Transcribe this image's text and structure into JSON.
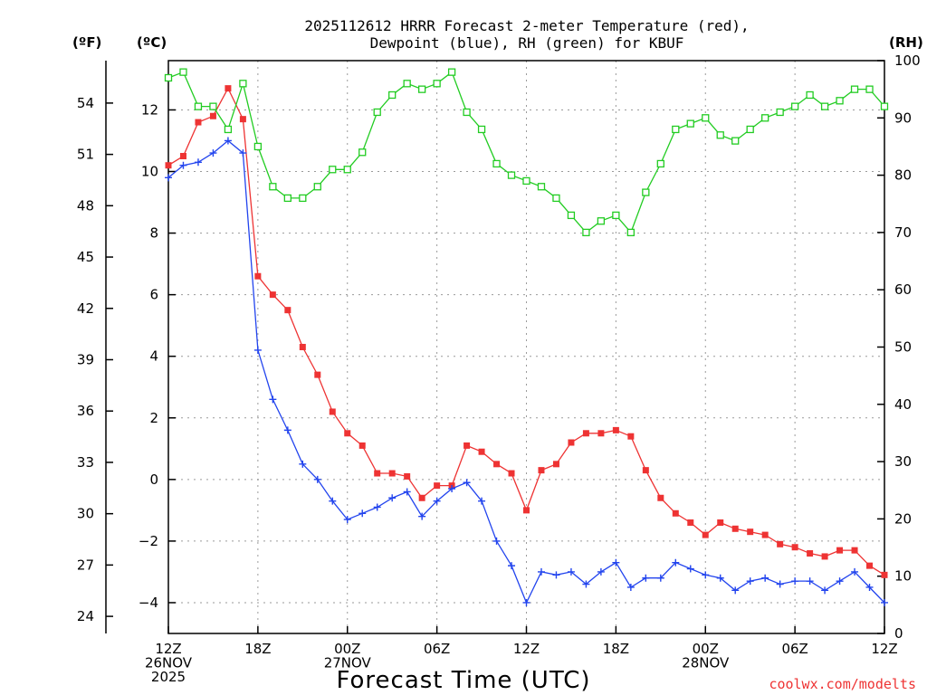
{
  "chart_data": {
    "type": "line",
    "title_lines": [
      "2025112612 HRRR Forecast 2-meter Temperature (red),",
      "Dewpoint (blue), RH (green) for KBUF"
    ],
    "unit_labels": {
      "fahrenheit": "(ºF)",
      "celsius": "(ºC)",
      "rh": "(RH)"
    },
    "xlabel": "Forecast Time (UTC)",
    "credit": "coolwx.com/modelts",
    "x_range_hours": [
      0,
      48
    ],
    "celsius_axis": {
      "min": -5,
      "max": 13.6,
      "ticks": [
        -4,
        -2,
        0,
        2,
        4,
        6,
        8,
        10,
        12
      ]
    },
    "fahrenheit_ticks": [
      24,
      27,
      30,
      33,
      36,
      39,
      42,
      45,
      48,
      51,
      54
    ],
    "rh_axis": {
      "min": 0,
      "max": 100,
      "ticks": [
        0,
        10,
        20,
        30,
        40,
        50,
        60,
        70,
        80,
        90,
        100
      ]
    },
    "x_ticks": [
      {
        "hour": 0,
        "lines": [
          "12Z",
          "26NOV",
          "2025"
        ]
      },
      {
        "hour": 6,
        "lines": [
          "18Z"
        ]
      },
      {
        "hour": 12,
        "lines": [
          "00Z",
          "27NOV"
        ]
      },
      {
        "hour": 18,
        "lines": [
          "06Z"
        ]
      },
      {
        "hour": 24,
        "lines": [
          "12Z"
        ]
      },
      {
        "hour": 30,
        "lines": [
          "18Z"
        ]
      },
      {
        "hour": 36,
        "lines": [
          "00Z",
          "28NOV"
        ]
      },
      {
        "hour": 42,
        "lines": [
          "06Z"
        ]
      },
      {
        "hour": 48,
        "lines": [
          "12Z"
        ]
      }
    ],
    "series": [
      {
        "name": "Temperature",
        "unit": "C",
        "color": "#ee3333",
        "marker": "filled-square",
        "values": [
          10.2,
          10.5,
          11.6,
          11.8,
          12.7,
          11.7,
          6.6,
          6.0,
          5.5,
          4.3,
          3.4,
          2.2,
          1.5,
          1.1,
          0.2,
          0.2,
          0.1,
          -0.6,
          -0.2,
          -0.2,
          1.1,
          0.9,
          0.5,
          0.2,
          -1.0,
          0.3,
          0.5,
          1.2,
          1.5,
          1.5,
          1.6,
          1.4,
          0.3,
          -0.6,
          -1.1,
          -1.4,
          -1.8,
          -1.4,
          -1.6,
          -1.7,
          -1.8,
          -2.1,
          -2.2,
          -2.4,
          -2.5,
          -2.3,
          -2.3,
          -2.8,
          -3.1
        ]
      },
      {
        "name": "Dewpoint",
        "unit": "C",
        "color": "#2244ee",
        "marker": "plus",
        "values": [
          9.8,
          10.2,
          10.3,
          10.6,
          11.0,
          10.6,
          4.2,
          2.6,
          1.6,
          0.5,
          0.0,
          -0.7,
          -1.3,
          -1.1,
          -0.9,
          -0.6,
          -0.4,
          -1.2,
          -0.7,
          -0.3,
          -0.1,
          -0.7,
          -2.0,
          -2.8,
          -4.0,
          -3.0,
          -3.1,
          -3.0,
          -3.4,
          -3.0,
          -2.7,
          -3.5,
          -3.2,
          -3.2,
          -2.7,
          -2.9,
          -3.1,
          -3.2,
          -3.6,
          -3.3,
          -3.2,
          -3.4,
          -3.3,
          -3.3,
          -3.6,
          -3.3,
          -3.0,
          -3.5,
          -4.0
        ]
      },
      {
        "name": "RH",
        "unit": "%",
        "color": "#22cc22",
        "marker": "open-square",
        "values": [
          97,
          98,
          92,
          92,
          88,
          96,
          85,
          78,
          76,
          76,
          78,
          81,
          81,
          84,
          91,
          94,
          96,
          95,
          96,
          98,
          91,
          88,
          82,
          80,
          79,
          78,
          76,
          73,
          70,
          72,
          73,
          70,
          77,
          82,
          88,
          89,
          90,
          87,
          86,
          88,
          90,
          91,
          92,
          94,
          92,
          93,
          95,
          95,
          92
        ]
      }
    ]
  }
}
